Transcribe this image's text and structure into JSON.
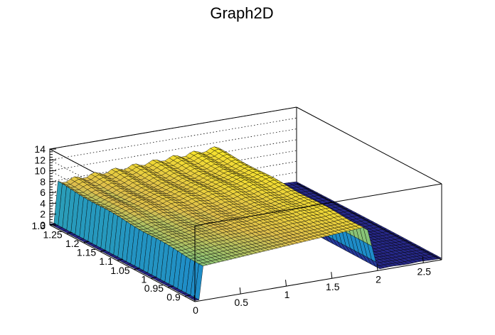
{
  "chart_data": {
    "type": "surface",
    "title": "Graph2D",
    "xlabel": "",
    "ylabel": "",
    "zlabel": "",
    "xlim": [
      0,
      2.7
    ],
    "ylim": [
      0.87,
      1.3
    ],
    "zlim": [
      0,
      14
    ],
    "x_tick_labels": [
      "0",
      "0.5",
      "1",
      "1.5",
      "2",
      "2.5"
    ],
    "y_tick_labels": [
      "0.9",
      "0.95",
      "1",
      "1.05",
      "1.1",
      "1.15",
      "1.2",
      "1.25",
      "1.3"
    ],
    "z_tick_labels": [
      "0",
      "2",
      "4",
      "6",
      "8",
      "10",
      "12",
      "14"
    ],
    "grid": true,
    "colormap": "viridis-like (blue to yellow)",
    "surface_description": {
      "baseline_region": {
        "x_range": [
          0,
          0.05
        ],
        "z": 0.2
      },
      "plateau_region": {
        "x_range": [
          0.05,
          1.88
        ],
        "z_at_y_min": [
          6.3,
          8.5
        ],
        "z_at_y_max": [
          7.5,
          8.9
        ]
      },
      "dropoff": {
        "x_range": [
          1.88,
          2.0
        ],
        "z_to": 0.3
      },
      "tail_region": {
        "x_range": [
          2.0,
          2.7
        ],
        "z": 0.3
      }
    },
    "sample_points": [
      {
        "x": 0.1,
        "y": 0.9,
        "z": 6.3
      },
      {
        "x": 0.5,
        "y": 0.9,
        "z": 6.8
      },
      {
        "x": 1.0,
        "y": 0.9,
        "z": 7.4
      },
      {
        "x": 1.5,
        "y": 0.9,
        "z": 8.0
      },
      {
        "x": 1.85,
        "y": 0.9,
        "z": 8.5
      },
      {
        "x": 0.1,
        "y": 1.3,
        "z": 7.6
      },
      {
        "x": 1.0,
        "y": 1.3,
        "z": 8.2
      },
      {
        "x": 1.85,
        "y": 1.3,
        "z": 8.9
      },
      {
        "x": 2.2,
        "y": 1.1,
        "z": 0.3
      }
    ]
  }
}
